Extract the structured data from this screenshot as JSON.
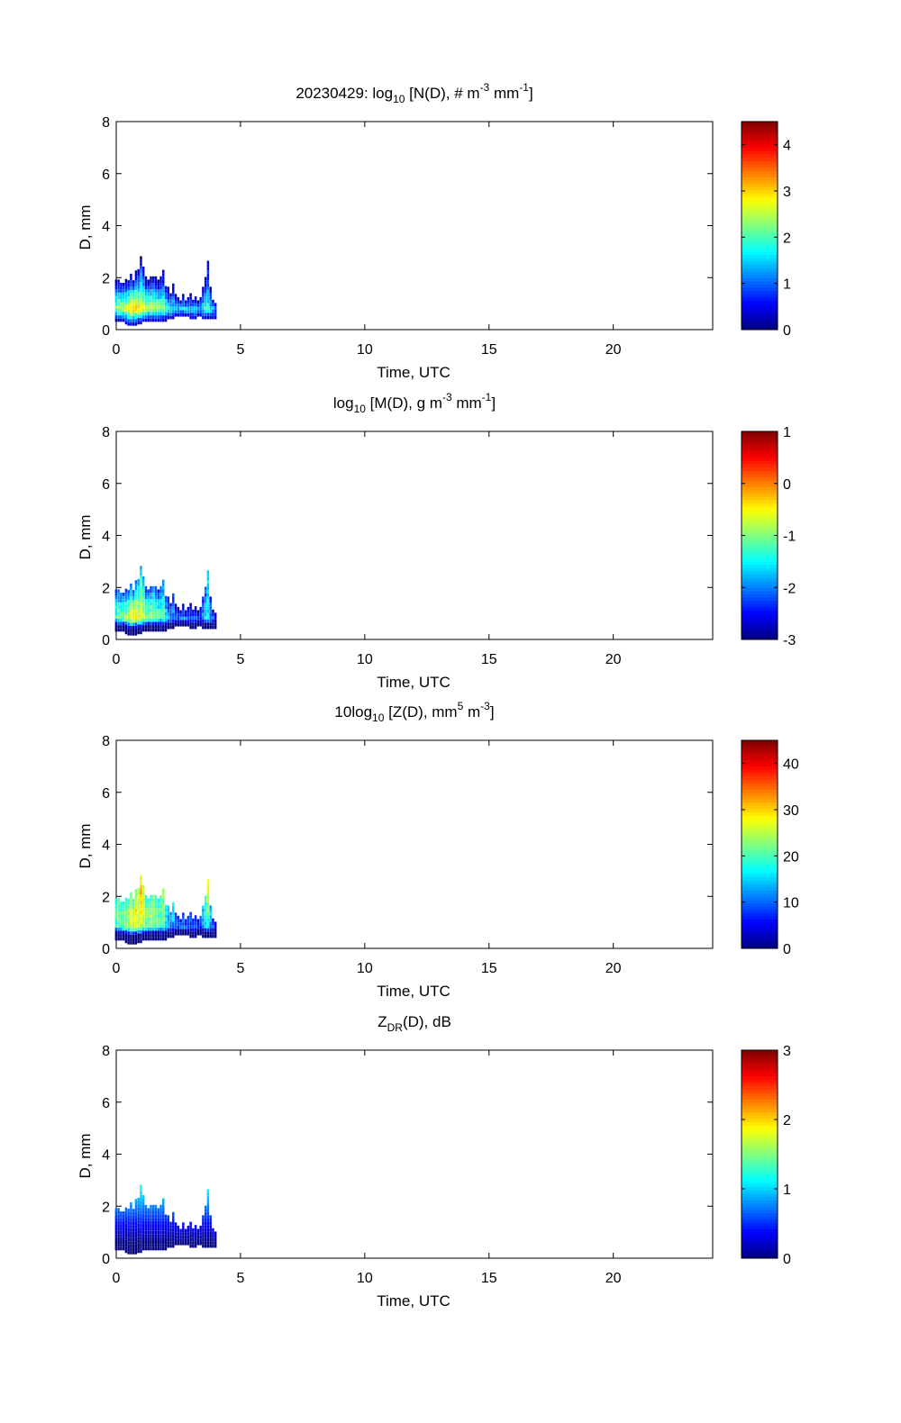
{
  "chart_data": {
    "type": "heatmap",
    "date": "20230429",
    "xlabel": "Time, UTC",
    "ylabel": "D, mm",
    "xlim": [
      0,
      24
    ],
    "ylim": [
      0,
      8
    ],
    "xticks": [
      0,
      5,
      10,
      15,
      20
    ],
    "yticks": [
      0,
      2,
      4,
      6,
      8
    ],
    "colormap": "jet",
    "time_step_h": 0.1,
    "d_bin_mm": 0.125,
    "columns_note": "per time column: [time_h, D_min_mm, D_max_mm, peak log10 N(D)]",
    "columns": [
      [
        0.0,
        0.3,
        1.9,
        2.3
      ],
      [
        0.1,
        0.3,
        2.0,
        2.5
      ],
      [
        0.2,
        0.3,
        1.8,
        2.6
      ],
      [
        0.3,
        0.3,
        1.8,
        2.7
      ],
      [
        0.4,
        0.2,
        1.9,
        2.8
      ],
      [
        0.5,
        0.15,
        1.9,
        3.0
      ],
      [
        0.6,
        0.15,
        2.1,
        3.1
      ],
      [
        0.7,
        0.15,
        2.0,
        3.2
      ],
      [
        0.8,
        0.15,
        2.3,
        3.1
      ],
      [
        0.9,
        0.2,
        2.3,
        3.0
      ],
      [
        1.0,
        0.2,
        2.9,
        2.9
      ],
      [
        1.1,
        0.3,
        2.5,
        2.7
      ],
      [
        1.2,
        0.3,
        2.0,
        2.6
      ],
      [
        1.3,
        0.3,
        2.0,
        2.5
      ],
      [
        1.4,
        0.3,
        2.0,
        2.6
      ],
      [
        1.5,
        0.3,
        2.1,
        2.5
      ],
      [
        1.6,
        0.3,
        2.0,
        2.5
      ],
      [
        1.7,
        0.3,
        1.9,
        2.4
      ],
      [
        1.8,
        0.3,
        2.0,
        2.3
      ],
      [
        1.9,
        0.3,
        2.3,
        2.2
      ],
      [
        2.0,
        0.3,
        1.8,
        2.0
      ],
      [
        2.1,
        0.4,
        1.6,
        1.8
      ],
      [
        2.2,
        0.4,
        1.5,
        1.7
      ],
      [
        2.3,
        0.4,
        1.9,
        1.6
      ],
      [
        2.4,
        0.5,
        1.3,
        1.5
      ],
      [
        2.5,
        0.5,
        1.2,
        1.5
      ],
      [
        2.6,
        0.5,
        1.1,
        1.5
      ],
      [
        2.7,
        0.5,
        1.3,
        1.6
      ],
      [
        2.8,
        0.5,
        1.1,
        1.6
      ],
      [
        2.9,
        0.5,
        1.2,
        1.6
      ],
      [
        3.0,
        0.4,
        1.3,
        1.5
      ],
      [
        3.1,
        0.4,
        1.2,
        1.5
      ],
      [
        3.2,
        0.4,
        1.2,
        1.6
      ],
      [
        3.3,
        0.5,
        1.1,
        1.4
      ],
      [
        3.4,
        0.5,
        1.3,
        1.3
      ],
      [
        3.5,
        0.4,
        1.6,
        1.7
      ],
      [
        3.6,
        0.4,
        2.0,
        1.9
      ],
      [
        3.7,
        0.4,
        2.7,
        1.9
      ],
      [
        3.8,
        0.4,
        1.6,
        1.7
      ],
      [
        3.9,
        0.4,
        1.1,
        1.5
      ],
      [
        4.0,
        0.4,
        1.1,
        1.2
      ]
    ],
    "panels": [
      {
        "id": "N",
        "title_pre": "20230429: log",
        "title_sub": "10",
        "title_post": " [N(D), # m",
        "sup1": "-3",
        "mid": " mm",
        "sup2": "-1",
        "end": "]",
        "clim": [
          0,
          4.5
        ],
        "cticks": [
          0,
          1,
          2,
          3,
          4
        ]
      },
      {
        "id": "M",
        "title_pre": "log",
        "title_sub": "10",
        "title_post": " [M(D), g m",
        "sup1": "-3",
        "mid": " mm",
        "sup2": "-1",
        "end": "]",
        "clim": [
          -3,
          1
        ],
        "cticks": [
          -3,
          -2,
          -1,
          0,
          1
        ]
      },
      {
        "id": "Z",
        "title_pre": "10log",
        "title_sub": "10",
        "title_post": " [Z(D),  mm",
        "sup1": "5",
        "mid": " m",
        "sup2": "-3",
        "end": "]",
        "clim": [
          0,
          45
        ],
        "cticks": [
          0,
          10,
          20,
          30,
          40
        ]
      },
      {
        "id": "ZDR",
        "title_pre": "Z",
        "title_sub": "DR",
        "title_post": "(D), dB",
        "sup1": "",
        "mid": "",
        "sup2": "",
        "end": "",
        "clim": [
          0,
          3
        ],
        "cticks": [
          0,
          1,
          2,
          3
        ]
      }
    ]
  }
}
